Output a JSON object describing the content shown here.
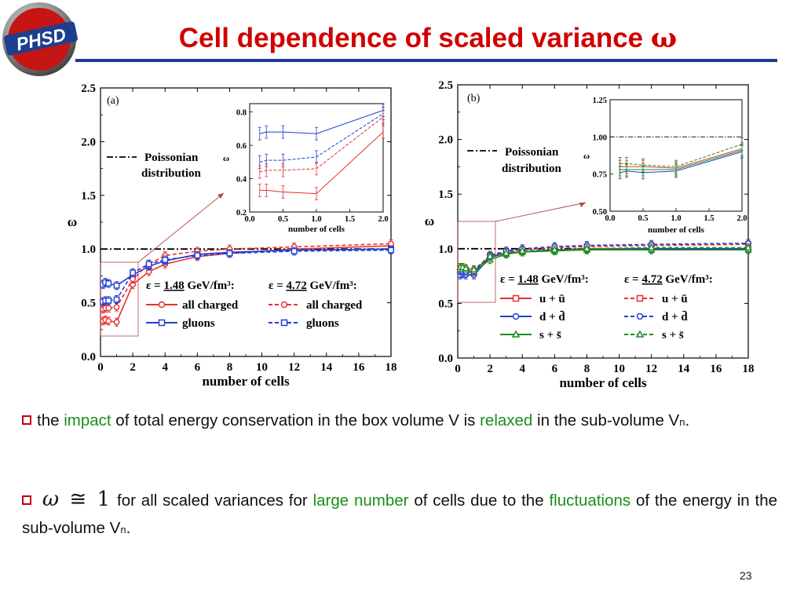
{
  "logo": {
    "text": "PHSD"
  },
  "title": {
    "text": "Cell dependence of scaled variance",
    "symbol": "ω"
  },
  "figures": {
    "a": {
      "panel_label": "(a)",
      "annotation": [
        "Poissonian",
        "distribution"
      ],
      "legend": {
        "eps_symbol": "ε",
        "eq": "=",
        "eps_low": "1.48",
        "eps_high": "4.72",
        "unit": "GeV/fm³:",
        "rows": [
          "all charged",
          "gluons"
        ]
      },
      "inset_xlabel": "number of cells"
    },
    "b": {
      "panel_label": "(b)",
      "annotation": [
        "Poissonian",
        "distribution"
      ],
      "legend": {
        "eps_symbol": "ε",
        "eq": "=",
        "eps_low": "1.48",
        "eps_high": "4.72",
        "unit": "GeV/fm³:",
        "rows": [
          "u + ū",
          "d + d̄",
          "s + s̄"
        ]
      },
      "inset_xlabel": "number of cells"
    }
  },
  "chart_data": [
    {
      "type": "line",
      "panel": "a",
      "xlabel": "number of cells",
      "ylabel": "ω",
      "xlim": [
        0,
        18
      ],
      "ylim": [
        0,
        2.5
      ],
      "xticks": [
        "0",
        "2",
        "4",
        "6",
        "8",
        "10",
        "12",
        "14",
        "16",
        "18"
      ],
      "yticks": [
        "0.0",
        "0.5",
        "1.0",
        "1.5",
        "2.0",
        "2.5"
      ],
      "reference_line": 1.0,
      "x": [
        0.15,
        0.3,
        0.5,
        1,
        2,
        3,
        4,
        6,
        8,
        12,
        18
      ],
      "series": [
        {
          "name": "all charged",
          "energy": "1.48",
          "color": "#e83030",
          "dashed": false,
          "marker": "circle",
          "values": [
            0.33,
            0.34,
            0.33,
            0.32,
            0.67,
            0.79,
            0.86,
            0.93,
            0.96,
            1.0,
            1.03
          ]
        },
        {
          "name": "gluons",
          "energy": "1.48",
          "color": "#1f3fd6",
          "dashed": false,
          "marker": "square",
          "values": [
            0.67,
            0.69,
            0.68,
            0.66,
            0.76,
            0.84,
            0.89,
            0.95,
            0.97,
            0.99,
            1.0
          ]
        },
        {
          "name": "all charged",
          "energy": "4.72",
          "color": "#e83030",
          "dashed": true,
          "marker": "circle",
          "values": [
            0.44,
            0.45,
            0.45,
            0.46,
            0.72,
            0.86,
            0.94,
            0.98,
            1.0,
            1.02,
            1.05
          ]
        },
        {
          "name": "gluons",
          "energy": "4.72",
          "color": "#1f3fd6",
          "dashed": true,
          "marker": "square",
          "values": [
            0.51,
            0.52,
            0.52,
            0.53,
            0.78,
            0.86,
            0.9,
            0.94,
            0.96,
            0.98,
            0.99
          ]
        }
      ],
      "inset": {
        "xlim": [
          0,
          2
        ],
        "ylim": [
          0.2,
          0.85
        ],
        "xticks": [
          "0.0",
          "0.5",
          "1.0",
          "1.5",
          "2.0"
        ],
        "yticks": [
          "0.2",
          "0.4",
          "0.6",
          "0.8"
        ],
        "ylabel": "ω",
        "x": [
          0.15,
          0.25,
          0.5,
          1.0,
          2.0
        ],
        "series": [
          {
            "color": "#1f3fd6",
            "dashed": false,
            "values": [
              0.67,
              0.68,
              0.68,
              0.67,
              0.81
            ]
          },
          {
            "color": "#1f3fd6",
            "dashed": true,
            "values": [
              0.5,
              0.51,
              0.51,
              0.53,
              0.79
            ]
          },
          {
            "color": "#e83030",
            "dashed": true,
            "values": [
              0.44,
              0.45,
              0.45,
              0.46,
              0.77
            ]
          },
          {
            "color": "#e83030",
            "dashed": false,
            "values": [
              0.33,
              0.33,
              0.32,
              0.31,
              0.68
            ]
          }
        ]
      }
    },
    {
      "type": "line",
      "panel": "b",
      "xlabel": "number of cells",
      "ylabel": "ω",
      "xlim": [
        0,
        18
      ],
      "ylim": [
        0,
        2.5
      ],
      "xticks": [
        "0",
        "2",
        "4",
        "6",
        "8",
        "10",
        "12",
        "14",
        "16",
        "18"
      ],
      "yticks": [
        "0.0",
        "0.5",
        "1.0",
        "1.5",
        "2.0",
        "2.5"
      ],
      "reference_line": 1.0,
      "x": [
        0.15,
        0.3,
        0.5,
        1,
        2,
        3,
        4,
        6,
        8,
        12,
        18
      ],
      "series": [
        {
          "name": "u + ū",
          "energy": "1.48",
          "color": "#e83030",
          "dashed": false,
          "marker": "square",
          "values": [
            0.8,
            0.8,
            0.79,
            0.78,
            0.93,
            0.96,
            0.97,
            0.99,
            1.0,
            1.0,
            1.0
          ]
        },
        {
          "name": "d + d̄",
          "energy": "1.48",
          "color": "#1f3fd6",
          "dashed": false,
          "marker": "circle",
          "values": [
            0.76,
            0.77,
            0.76,
            0.76,
            0.92,
            0.96,
            0.97,
            0.99,
            0.99,
            1.0,
            1.0
          ]
        },
        {
          "name": "s + s̄",
          "energy": "1.48",
          "color": "#1a8f1a",
          "dashed": false,
          "marker": "triangle",
          "values": [
            0.8,
            0.8,
            0.79,
            0.79,
            0.9,
            0.95,
            0.97,
            0.98,
            0.99,
            0.99,
            0.99
          ]
        },
        {
          "name": "u + ū",
          "energy": "4.72",
          "color": "#e83030",
          "dashed": true,
          "marker": "square",
          "values": [
            0.82,
            0.82,
            0.81,
            0.8,
            0.94,
            0.97,
            0.99,
            1.01,
            1.02,
            1.03,
            1.04
          ]
        },
        {
          "name": "d + d̄",
          "energy": "4.72",
          "color": "#1f3fd6",
          "dashed": true,
          "marker": "circle",
          "values": [
            0.8,
            0.8,
            0.79,
            0.79,
            0.94,
            0.98,
            1.0,
            1.02,
            1.03,
            1.04,
            1.05
          ]
        },
        {
          "name": "s + s̄",
          "energy": "4.72",
          "color": "#1a8f1a",
          "dashed": true,
          "marker": "triangle",
          "values": [
            0.83,
            0.83,
            0.82,
            0.81,
            0.93,
            0.96,
            0.98,
            0.99,
            1.0,
            1.01,
            1.01
          ]
        }
      ],
      "inset": {
        "xlim": [
          0,
          2
        ],
        "ylim": [
          0.5,
          1.25
        ],
        "xticks": [
          "0.0",
          "0.5",
          "1.0",
          "1.5",
          "2.0"
        ],
        "yticks": [
          "0.50",
          "0.75",
          "1.00",
          "1.25"
        ],
        "ylabel": "ω",
        "x": [
          0.15,
          0.25,
          0.5,
          1.0,
          2.0
        ],
        "series": [
          {
            "color": "#1a8f1a",
            "dashed": true,
            "values": [
              0.82,
              0.82,
              0.81,
              0.8,
              0.95
            ]
          },
          {
            "color": "#e83030",
            "dashed": false,
            "values": [
              0.8,
              0.8,
              0.8,
              0.79,
              0.92
            ]
          },
          {
            "color": "#1f3fd6",
            "dashed": false,
            "values": [
              0.76,
              0.77,
              0.76,
              0.77,
              0.9
            ]
          },
          {
            "color": "#1a8f1a",
            "dashed": false,
            "values": [
              0.78,
              0.78,
              0.78,
              0.78,
              0.91
            ]
          }
        ]
      }
    }
  ],
  "bullets": [
    {
      "parts": [
        "the",
        "impact",
        "of total energy conservation in the box volume V is",
        "relaxed",
        "in the sub-volume V",
        "n",
        "."
      ]
    },
    {
      "math": [
        "ω",
        "≅",
        "1"
      ],
      "parts": [
        "for all scaled variances for",
        "large number",
        "of cells due to the",
        "fluctuations",
        "of the energy in the sub-volume V",
        "n",
        "."
      ]
    }
  ],
  "page_number": "23",
  "colors": {
    "title": "#d00000",
    "rule": "#1e3a9a",
    "highlight": "#1a8f1a",
    "bullet": "#c00000"
  }
}
